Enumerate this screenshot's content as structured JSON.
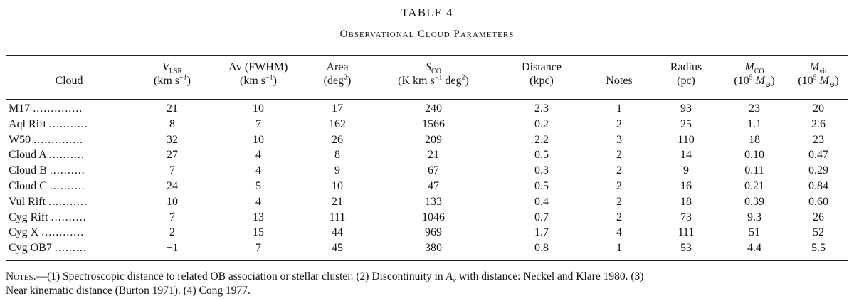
{
  "table": {
    "number": "TABLE 4",
    "title": "Observational Cloud Parameters",
    "columns": [
      {
        "key": "cloud",
        "line1": "",
        "line2": "Cloud"
      },
      {
        "key": "vlsr",
        "symbol": "V",
        "sub": "LSR",
        "unit_pre": "(km s",
        "unit_sup": "−1",
        "unit_post": ")"
      },
      {
        "key": "dv",
        "line1": "Δv (FWHM)",
        "unit_pre": "(km s",
        "unit_sup": "−1",
        "unit_post": ")"
      },
      {
        "key": "area",
        "line1": "Area",
        "unit_pre": "(deg",
        "unit_sup": "2",
        "unit_post": ")"
      },
      {
        "key": "sco",
        "symbol": "S",
        "sub": "CO",
        "unit_pre": "(K km s",
        "unit_sup": "−1",
        "unit_mid": " deg",
        "unit_sup2": "2",
        "unit_post": ")"
      },
      {
        "key": "distance",
        "line1": "Distance",
        "line2": "(kpc)"
      },
      {
        "key": "notes",
        "line1": "",
        "line2": "Notes"
      },
      {
        "key": "radius",
        "line1": "Radius",
        "line2": "(pc)"
      },
      {
        "key": "mco",
        "symbol": "M",
        "sub": "CO",
        "unit_pre": "(10",
        "unit_sup": "5",
        "unit_post": " M",
        "unit_sub": "⊙",
        "unit_end": ")"
      },
      {
        "key": "mvir",
        "symbol": "M",
        "sub": "vir",
        "unit_pre": "(10",
        "unit_sup": "5",
        "unit_post": " M",
        "unit_sub": "⊙",
        "unit_end": ")"
      }
    ],
    "rows": [
      {
        "cloud": "M17",
        "dots": "..............",
        "vlsr": "21",
        "dv": "10",
        "area": "17",
        "sco": "240",
        "distance": "2.3",
        "notes": "1",
        "radius": "93",
        "mco": "23",
        "mvir": "20"
      },
      {
        "cloud": "Aql Rift",
        "dots": "...........",
        "vlsr": "8",
        "dv": "7",
        "area": "162",
        "sco": "1566",
        "distance": "0.2",
        "notes": "2",
        "radius": "25",
        "mco": "1.1",
        "mvir": "2.6"
      },
      {
        "cloud": "W50",
        "dots": "..............",
        "vlsr": "32",
        "dv": "10",
        "area": "26",
        "sco": "209",
        "distance": "2.2",
        "notes": "3",
        "radius": "110",
        "mco": "18",
        "mvir": "23"
      },
      {
        "cloud": "Cloud A",
        "dots": "..........",
        "vlsr": "27",
        "dv": "4",
        "area": "8",
        "sco": "21",
        "distance": "0.5",
        "notes": "2",
        "radius": "14",
        "mco": "0.10",
        "mvir": "0.47"
      },
      {
        "cloud": "Cloud B",
        "dots": "..........",
        "vlsr": "7",
        "dv": "4",
        "area": "9",
        "sco": "67",
        "distance": "0.3",
        "notes": "2",
        "radius": "9",
        "mco": "0.11",
        "mvir": "0.29"
      },
      {
        "cloud": "Cloud C",
        "dots": "..........",
        "vlsr": "24",
        "dv": "5",
        "area": "10",
        "sco": "47",
        "distance": "0.5",
        "notes": "2",
        "radius": "16",
        "mco": "0.21",
        "mvir": "0.84"
      },
      {
        "cloud": "Vul Rift",
        "dots": "...........",
        "vlsr": "10",
        "dv": "4",
        "area": "21",
        "sco": "133",
        "distance": "0.4",
        "notes": "2",
        "radius": "18",
        "mco": "0.39",
        "mvir": "0.60"
      },
      {
        "cloud": "Cyg Rift",
        "dots": "..........",
        "vlsr": "7",
        "dv": "13",
        "area": "111",
        "sco": "1046",
        "distance": "0.7",
        "notes": "2",
        "radius": "73",
        "mco": "9.3",
        "mvir": "26"
      },
      {
        "cloud": "Cyg X",
        "dots": "............",
        "vlsr": "2",
        "dv": "15",
        "area": "44",
        "sco": "969",
        "distance": "1.7",
        "notes": "4",
        "radius": "111",
        "mco": "51",
        "mvir": "52"
      },
      {
        "cloud": "Cyg OB7",
        "dots": ".........",
        "vlsr": "−1",
        "dv": "7",
        "area": "45",
        "sco": "380",
        "distance": "0.8",
        "notes": "1",
        "radius": "53",
        "mco": "4.4",
        "mvir": "5.5"
      }
    ]
  },
  "notes": {
    "lead": "Notes",
    "dash": ".—",
    "text1": "(1) Spectroscopic distance to related OB association or stellar cluster. (2) Discontinuity in ",
    "av_symbol": "A",
    "av_sub": "v",
    "text2": " with distance: Neckel and Klare 1980. (3)",
    "text3": "Near kinematic distance (Burton 1971). (4) Cong 1977."
  }
}
